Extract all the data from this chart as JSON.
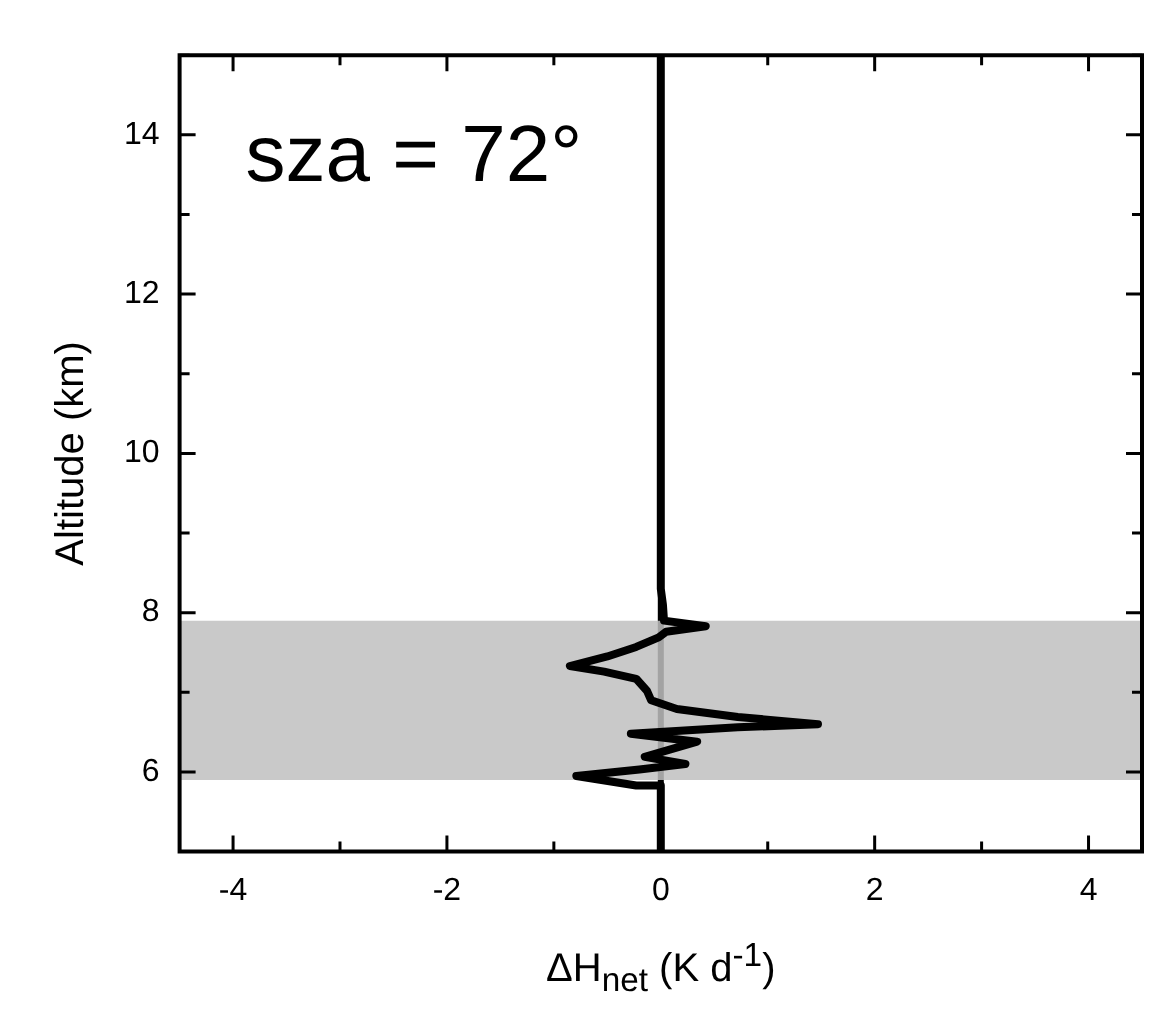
{
  "chart_data": {
    "type": "line",
    "xlabel": "ΔH$_{net}$ (K d$^{-1}$)",
    "ylabel": "Altitude (km)",
    "annotations": [
      "sza = 72°"
    ],
    "series": [
      {
        "color": "#000000",
        "x": [
          0,
          0,
          0.02,
          0.03,
          0.42,
          0.05,
          -0.02,
          -0.23,
          -0.5,
          -0.85,
          -0.53,
          -0.23,
          -0.13,
          -0.09,
          0.15,
          0.72,
          1.47,
          0.72,
          -0.28,
          0.34,
          -0.15,
          0.23,
          -0.2,
          -0.79,
          -0.23,
          0,
          0
        ],
        "values": [
          15,
          8.3,
          8.1,
          7.9,
          7.83,
          7.76,
          7.69,
          7.57,
          7.45,
          7.33,
          7.26,
          7.17,
          7.02,
          6.9,
          6.79,
          6.69,
          6.6,
          6.56,
          6.48,
          6.38,
          6.19,
          6.1,
          6.03,
          5.95,
          5.83,
          5.83,
          5
        ]
      }
    ],
    "xlim": [
      -4.5,
      4.5
    ],
    "xticks": [
      -4,
      {
        "value": -3,
        "label": null
      },
      -2,
      {
        "value": -1,
        "label": null
      },
      0,
      {
        "value": 1,
        "label": null
      },
      2,
      {
        "value": 3,
        "label": null
      },
      4
    ],
    "ylim": [
      5,
      15
    ],
    "yticks": [
      {
        "value": 5,
        "label": null
      },
      6,
      {
        "value": 7,
        "label": null
      },
      8,
      {
        "value": 9,
        "label": null
      },
      10,
      {
        "value": 11,
        "label": null
      },
      12,
      {
        "value": 13,
        "label": null
      },
      14,
      {
        "value": 15,
        "label": null
      }
    ],
    "ref_lines": [
      {
        "axis": "x",
        "value": 0,
        "color": "#000000"
      }
    ],
    "bands": [
      {
        "axis": "y",
        "from": 5.9,
        "to": 7.9,
        "color": "#c0c0c0"
      }
    ],
    "grid": false,
    "legend": false,
    "marker": "none",
    "line_style": "solid"
  }
}
